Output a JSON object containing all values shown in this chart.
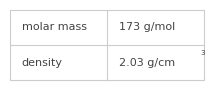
{
  "rows": [
    {
      "label": "molar mass",
      "value": "173 g/mol",
      "superscript": null
    },
    {
      "label": "density",
      "value": "2.03 g/cm",
      "superscript": "3"
    }
  ],
  "bg_color": "#ffffff",
  "divider_color": "#cccccc",
  "text_color": "#444444",
  "label_fontsize": 8.0,
  "value_fontsize": 8.0,
  "col_split": 0.5
}
